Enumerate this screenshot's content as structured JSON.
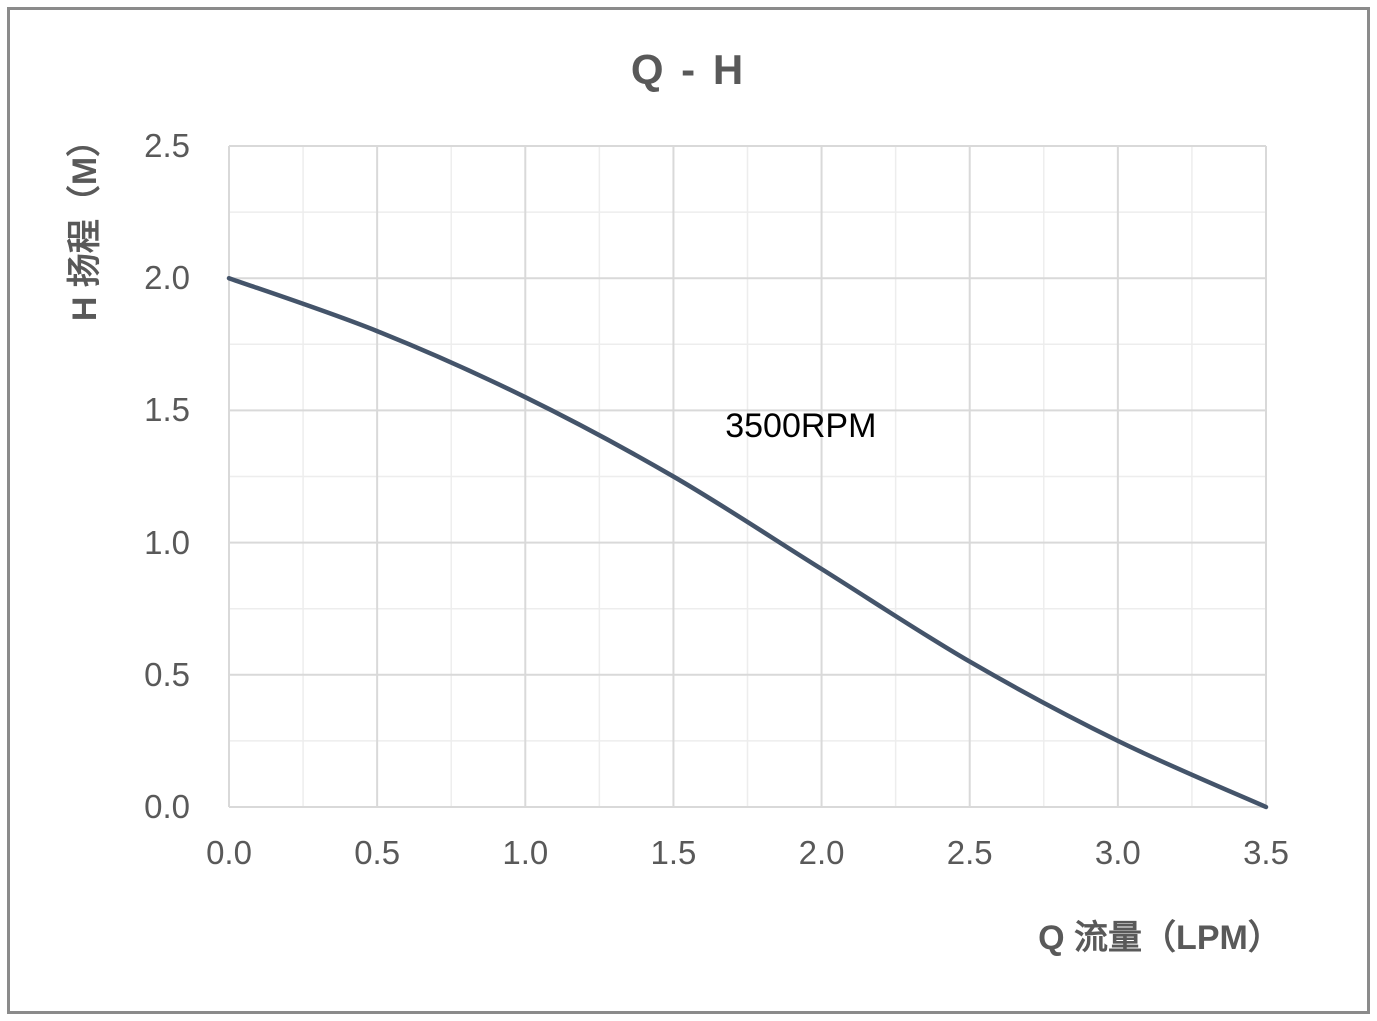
{
  "chart_data": {
    "type": "line",
    "title": "Q - H",
    "xlabel": "Q 流量（LPM）",
    "ylabel": "H 扬程（M）",
    "series": [
      {
        "name": "3500RPM",
        "x": [
          0.0,
          0.5,
          1.0,
          1.5,
          2.0,
          2.5,
          3.0,
          3.5
        ],
        "y": [
          2.0,
          1.8,
          1.55,
          1.25,
          0.9,
          0.55,
          0.25,
          0.0
        ]
      }
    ],
    "xlim": [
      0,
      3.5
    ],
    "ylim": [
      0,
      2.5
    ],
    "x_tick_step": 0.5,
    "y_tick_step": 0.5,
    "minor_step": 0.25,
    "x_ticks": [
      "0.0",
      "0.5",
      "1.0",
      "1.5",
      "2.0",
      "2.5",
      "3.0",
      "3.5"
    ],
    "y_ticks": [
      "0.0",
      "0.5",
      "1.0",
      "1.5",
      "2.0",
      "2.5"
    ],
    "grid": "major-and-minor",
    "legend_position": "none",
    "annotation": {
      "text": "3500RPM",
      "x": 1.93,
      "y": 1.44
    },
    "colors": {
      "curve": "#44546A",
      "grid_major": "#D9D9D9",
      "grid_minor": "#EDEDED",
      "axis_text": "#595959",
      "annotation_text": "#000000",
      "chart_border": "#8B8B8B",
      "background": "#FFFFFF"
    }
  }
}
